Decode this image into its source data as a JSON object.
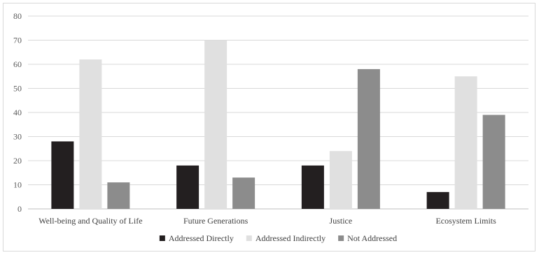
{
  "chart_data": {
    "type": "bar",
    "title": "",
    "xlabel": "",
    "ylabel": "",
    "categories": [
      "Well-being and Quality of Life",
      "Future Generations",
      "Justice",
      "Ecosystem Limits"
    ],
    "series": [
      {
        "name": "Addressed Directly",
        "color": "#231f20",
        "values": [
          28,
          18,
          18,
          7
        ]
      },
      {
        "name": "Addressed Indirectly",
        "color": "#e0e0e0",
        "values": [
          62,
          70,
          24,
          55
        ]
      },
      {
        "name": "Not Addressed",
        "color": "#8c8c8c",
        "values": [
          11,
          13,
          58,
          39
        ]
      }
    ],
    "ylim": [
      0,
      80
    ],
    "yticks": [
      0,
      10,
      20,
      30,
      40,
      50,
      60,
      70,
      80
    ],
    "grid": true,
    "legend_position": "bottom"
  }
}
